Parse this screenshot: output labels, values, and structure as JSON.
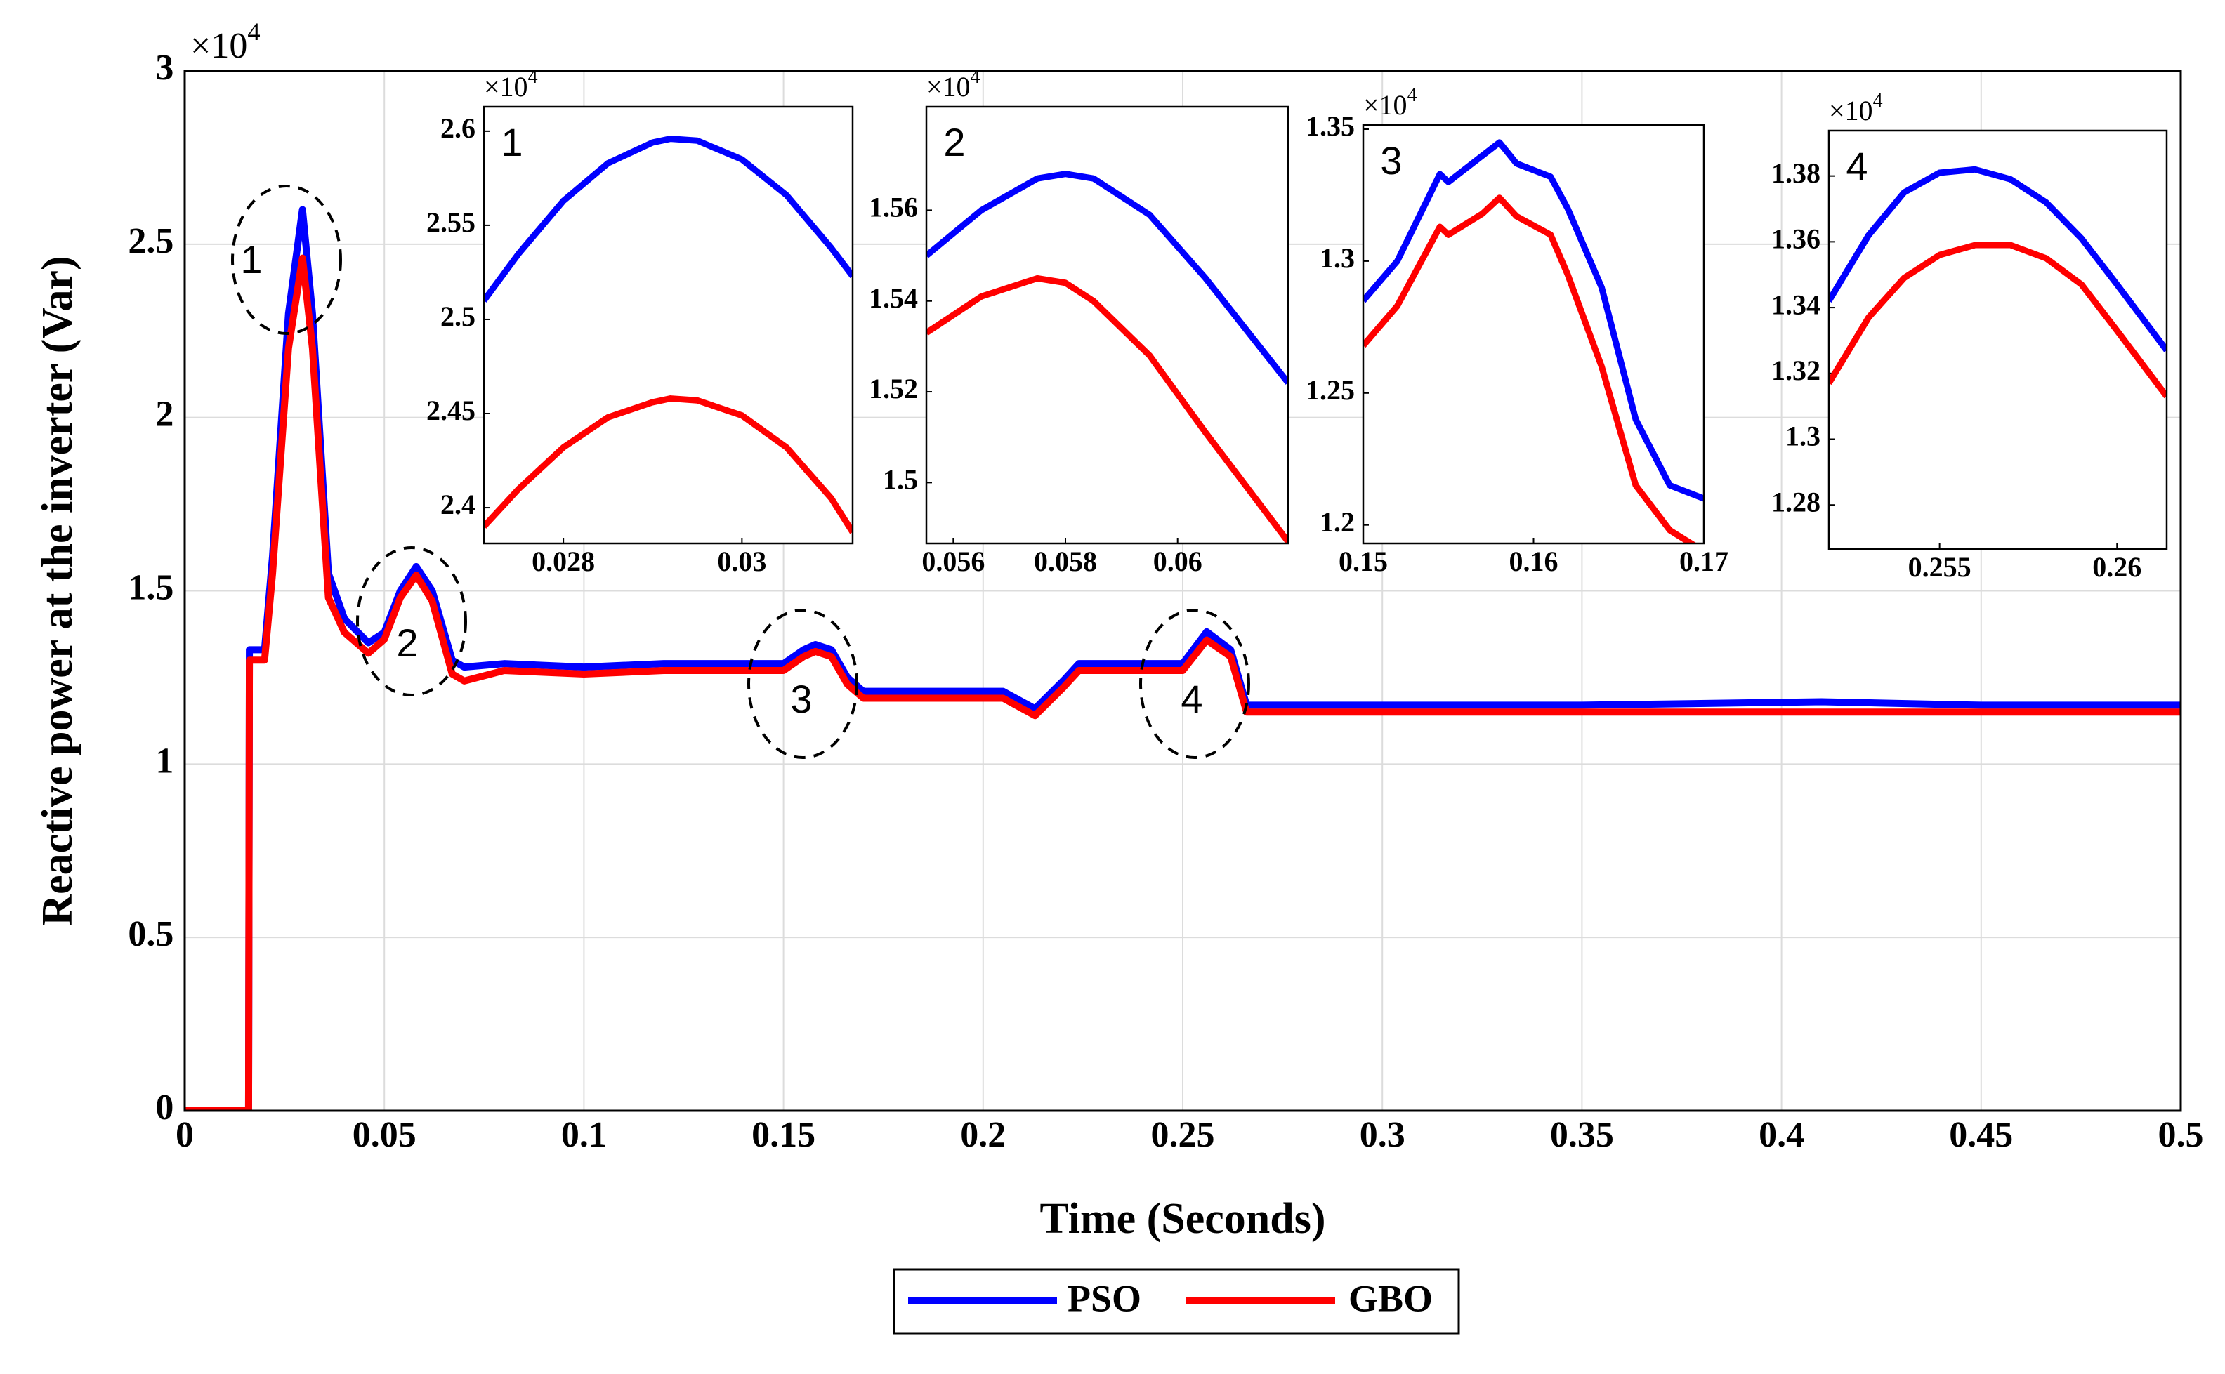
{
  "chart_data": [
    {
      "type": "line",
      "x_label": "Time (Seconds)",
      "y_label": "Reactive power at the inverter (Var)",
      "y_scale_label": {
        "base": "×10",
        "exponent": "4"
      },
      "xlim": [
        0,
        0.5
      ],
      "xticks": [
        0,
        0.05,
        0.1,
        0.15,
        0.2,
        0.25,
        0.3,
        0.35,
        0.4,
        0.45,
        0.5
      ],
      "ylim": [
        0,
        3
      ],
      "yticks": [
        0,
        0.5,
        1,
        1.5,
        2,
        2.5,
        3
      ],
      "grid": true,
      "legend": "bottom",
      "annotations": [
        "1",
        "2",
        "3",
        "4"
      ],
      "x": [
        0,
        0.016,
        0.0162,
        0.02,
        0.022,
        0.026,
        0.0295,
        0.032,
        0.036,
        0.04,
        0.046,
        0.05,
        0.054,
        0.058,
        0.062,
        0.067,
        0.07,
        0.08,
        0.1,
        0.12,
        0.15,
        0.155,
        0.158,
        0.162,
        0.166,
        0.17,
        0.2,
        0.205,
        0.213,
        0.22,
        0.224,
        0.25,
        0.256,
        0.262,
        0.266,
        0.3,
        0.35,
        0.41,
        0.45,
        0.5
      ],
      "series": [
        {
          "name": "PSO",
          "color": "#0000ff",
          "values": [
            0,
            0,
            1.33,
            1.33,
            1.6,
            2.3,
            2.6,
            2.3,
            1.55,
            1.42,
            1.35,
            1.38,
            1.5,
            1.57,
            1.5,
            1.3,
            1.28,
            1.29,
            1.28,
            1.29,
            1.29,
            1.33,
            1.345,
            1.33,
            1.25,
            1.21,
            1.21,
            1.21,
            1.16,
            1.24,
            1.29,
            1.29,
            1.382,
            1.33,
            1.17,
            1.17,
            1.17,
            1.18,
            1.17,
            1.17
          ]
        },
        {
          "name": "GBO",
          "color": "#ff0000",
          "values": [
            0,
            0,
            1.3,
            1.3,
            1.55,
            2.2,
            2.46,
            2.2,
            1.48,
            1.38,
            1.32,
            1.36,
            1.48,
            1.545,
            1.47,
            1.26,
            1.24,
            1.27,
            1.26,
            1.27,
            1.27,
            1.31,
            1.325,
            1.31,
            1.23,
            1.19,
            1.19,
            1.19,
            1.14,
            1.22,
            1.27,
            1.27,
            1.358,
            1.31,
            1.15,
            1.15,
            1.15,
            1.15,
            1.15,
            1.15
          ]
        }
      ]
    },
    {
      "type": "line",
      "label": "1",
      "y_scale_label": {
        "base": "×10",
        "exponent": "4"
      },
      "grid": false,
      "xlim": [
        0.02711,
        0.03124
      ],
      "xticks": [
        0.028,
        0.03
      ],
      "ylim": [
        2.381,
        2.613
      ],
      "yticks": [
        2.4,
        2.45,
        2.5,
        2.55,
        2.6
      ],
      "x": [
        0.02711,
        0.0275,
        0.028,
        0.0285,
        0.029,
        0.0292,
        0.0295,
        0.03,
        0.0305,
        0.031,
        0.03124
      ],
      "series": [
        {
          "color": "#0000ff",
          "values": [
            2.51,
            2.535,
            2.563,
            2.583,
            2.594,
            2.596,
            2.595,
            2.585,
            2.566,
            2.538,
            2.523
          ]
        },
        {
          "color": "#ff0000",
          "values": [
            2.39,
            2.41,
            2.432,
            2.448,
            2.456,
            2.458,
            2.457,
            2.449,
            2.432,
            2.405,
            2.387
          ]
        }
      ]
    },
    {
      "type": "line",
      "label": "2",
      "y_scale_label": {
        "base": "×10",
        "exponent": "4"
      },
      "grid": false,
      "xlim": [
        0.05552,
        0.06197
      ],
      "xticks": [
        0.056,
        0.058,
        0.06
      ],
      "ylim": [
        1.4866,
        1.5828
      ],
      "yticks": [
        1.5,
        1.52,
        1.54,
        1.56
      ],
      "x": [
        0.05552,
        0.0565,
        0.0575,
        0.058,
        0.0585,
        0.0595,
        0.0605,
        0.06197
      ],
      "series": [
        {
          "color": "#0000ff",
          "values": [
            1.55,
            1.56,
            1.567,
            1.568,
            1.567,
            1.559,
            1.545,
            1.522
          ]
        },
        {
          "color": "#ff0000",
          "values": [
            1.533,
            1.541,
            1.545,
            1.544,
            1.54,
            1.528,
            1.511,
            1.487
          ]
        }
      ]
    },
    {
      "type": "line",
      "label": "3",
      "y_scale_label": {
        "base": "×10",
        "exponent": "4"
      },
      "grid": false,
      "xlim": [
        0.15,
        0.17
      ],
      "xticks": [
        0.15,
        0.16,
        0.17
      ],
      "ylim": [
        1.193,
        1.3516
      ],
      "yticks": [
        1.2,
        1.25,
        1.3,
        1.35
      ],
      "x": [
        0.15,
        0.152,
        0.1545,
        0.155,
        0.157,
        0.158,
        0.159,
        0.161,
        0.162,
        0.164,
        0.166,
        0.168,
        0.17
      ],
      "series": [
        {
          "color": "#0000ff",
          "values": [
            1.285,
            1.3,
            1.333,
            1.33,
            1.34,
            1.345,
            1.337,
            1.332,
            1.32,
            1.29,
            1.24,
            1.215,
            1.21
          ]
        },
        {
          "color": "#ff0000",
          "values": [
            1.268,
            1.283,
            1.313,
            1.31,
            1.318,
            1.324,
            1.317,
            1.31,
            1.295,
            1.26,
            1.215,
            1.198,
            1.19
          ]
        }
      ]
    },
    {
      "type": "line",
      "label": "4",
      "y_scale_label": {
        "base": "×10",
        "exponent": "4"
      },
      "grid": false,
      "xlim": [
        0.25188,
        0.2614
      ],
      "xticks": [
        0.255,
        0.26
      ],
      "ylim": [
        1.2666,
        1.3938
      ],
      "yticks": [
        1.28,
        1.3,
        1.32,
        1.34,
        1.36,
        1.38
      ],
      "x": [
        0.25188,
        0.253,
        0.254,
        0.255,
        0.256,
        0.257,
        0.258,
        0.259,
        0.26,
        0.2614
      ],
      "series": [
        {
          "color": "#0000ff",
          "values": [
            1.342,
            1.362,
            1.375,
            1.381,
            1.382,
            1.379,
            1.372,
            1.361,
            1.347,
            1.327
          ]
        },
        {
          "color": "#ff0000",
          "values": [
            1.317,
            1.337,
            1.349,
            1.356,
            1.359,
            1.359,
            1.355,
            1.347,
            1.333,
            1.313
          ]
        }
      ]
    }
  ]
}
